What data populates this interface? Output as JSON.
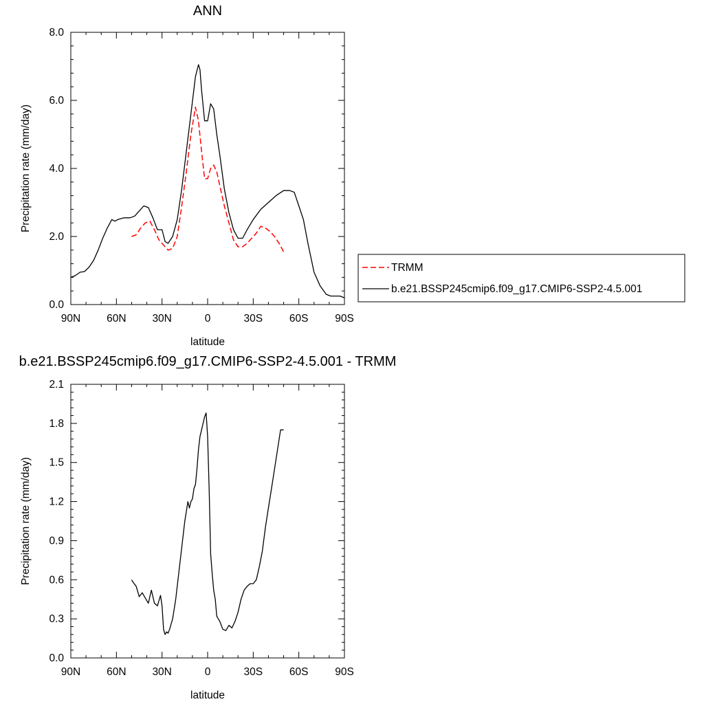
{
  "chart_data": [
    {
      "type": "line",
      "title": "ANN",
      "xlabel": "latitude",
      "ylabel": "Precipitation rate (mm/day)",
      "xlim": [
        90,
        -90
      ],
      "ylim": [
        0.0,
        8.0
      ],
      "x_ticks": [
        90,
        60,
        30,
        0,
        -30,
        -60,
        -90
      ],
      "x_tick_labels": [
        "90N",
        "60N",
        "30N",
        "0",
        "30S",
        "60S",
        "90S"
      ],
      "y_ticks": [
        0,
        2,
        4,
        6,
        8
      ],
      "y_tick_labels": [
        "0.0",
        "2.0",
        "4.0",
        "6.0",
        "8.0"
      ],
      "legend": {
        "placement": "right",
        "entries": [
          {
            "label": "TRMM",
            "color": "#ff0000",
            "dash": true
          },
          {
            "label": "b.e21.BSSP245cmip6.f09_g17.CMIP6-SSP2-4.5.001",
            "color": "#000000",
            "dash": false
          }
        ]
      },
      "series": [
        {
          "name": "TRMM",
          "color": "#ff0000",
          "dash": true,
          "x": [
            50,
            47,
            44,
            41,
            38,
            35,
            32,
            29,
            26,
            23,
            20,
            17,
            14,
            11,
            8,
            6,
            4,
            2,
            0,
            -2,
            -4,
            -6,
            -8,
            -11,
            -14,
            -17,
            -20,
            -23,
            -26,
            -29,
            -32,
            -35,
            -38,
            -41,
            -44,
            -47,
            -50
          ],
          "y": [
            2.0,
            2.05,
            2.25,
            2.4,
            2.45,
            2.2,
            1.9,
            1.75,
            1.6,
            1.65,
            2.0,
            2.9,
            3.9,
            5.0,
            5.8,
            5.4,
            4.5,
            3.7,
            3.7,
            4.0,
            4.1,
            3.9,
            3.5,
            2.9,
            2.4,
            1.9,
            1.7,
            1.7,
            1.8,
            1.95,
            2.1,
            2.3,
            2.25,
            2.15,
            2.0,
            1.8,
            1.55
          ]
        },
        {
          "name": "b.e21.BSSP245cmip6.f09_g17.CMIP6-SSP2-4.5.001",
          "color": "#000000",
          "dash": false,
          "x": [
            90,
            87,
            84,
            81,
            78,
            75,
            72,
            69,
            66,
            63,
            61,
            59,
            55,
            51,
            48,
            45,
            42,
            39,
            36,
            33,
            30,
            28,
            26,
            23,
            20,
            17,
            14,
            11,
            8,
            6,
            5,
            4,
            2,
            0,
            -2,
            -4,
            -6,
            -8,
            -11,
            -14,
            -17,
            -20,
            -23,
            -26,
            -30,
            -35,
            -40,
            -45,
            -50,
            -54,
            -57,
            -60,
            -63,
            -66,
            -70,
            -74,
            -78,
            -81,
            -84,
            -87,
            -90
          ],
          "y": [
            0.8,
            0.85,
            0.95,
            0.97,
            1.1,
            1.3,
            1.6,
            1.95,
            2.25,
            2.5,
            2.45,
            2.5,
            2.55,
            2.55,
            2.6,
            2.75,
            2.9,
            2.85,
            2.55,
            2.2,
            2.2,
            1.85,
            1.8,
            2.0,
            2.5,
            3.4,
            4.5,
            5.6,
            6.7,
            7.05,
            6.9,
            6.3,
            5.4,
            5.4,
            5.9,
            5.75,
            5.0,
            4.4,
            3.4,
            2.7,
            2.2,
            1.95,
            1.95,
            2.2,
            2.5,
            2.8,
            3.0,
            3.2,
            3.35,
            3.35,
            3.3,
            2.9,
            2.5,
            1.8,
            0.95,
            0.55,
            0.3,
            0.25,
            0.25,
            0.25,
            0.2
          ]
        }
      ]
    },
    {
      "type": "line",
      "title": "b.e21.BSSP245cmip6.f09_g17.CMIP6-SSP2-4.5.001 - TRMM",
      "xlabel": "latitude",
      "ylabel": "Precipitation rate (mm/day)",
      "xlim": [
        90,
        -90
      ],
      "ylim": [
        0.0,
        2.1
      ],
      "x_ticks": [
        90,
        60,
        30,
        0,
        -30,
        -60,
        -90
      ],
      "x_tick_labels": [
        "90N",
        "60N",
        "30N",
        "0",
        "30S",
        "60S",
        "90S"
      ],
      "y_ticks": [
        0,
        0.3,
        0.6,
        0.9,
        1.2,
        1.5,
        1.8,
        2.1
      ],
      "y_tick_labels": [
        "0.0",
        "0.3",
        "0.6",
        "0.9",
        "1.2",
        "1.5",
        "1.8",
        "2.1"
      ],
      "series": [
        {
          "color": "#000000",
          "dash": false,
          "x": [
            50,
            49,
            47,
            45,
            43,
            41,
            39,
            37,
            35,
            33,
            31,
            30,
            29,
            28,
            27,
            26,
            25,
            23,
            21,
            19,
            17,
            15,
            13,
            12,
            11,
            10,
            9,
            8,
            7,
            6,
            5,
            4,
            3,
            2,
            1,
            0,
            -1,
            -2,
            -3,
            -4,
            -5,
            -6,
            -7,
            -8,
            -10,
            -12,
            -14,
            -16,
            -18,
            -20,
            -22,
            -24,
            -26,
            -28,
            -30,
            -32,
            -34,
            -36,
            -38,
            -40,
            -42,
            -44,
            -46,
            -48,
            -50
          ],
          "y": [
            0.6,
            0.58,
            0.55,
            0.47,
            0.5,
            0.46,
            0.42,
            0.52,
            0.42,
            0.4,
            0.48,
            0.4,
            0.22,
            0.18,
            0.2,
            0.19,
            0.22,
            0.3,
            0.45,
            0.65,
            0.85,
            1.05,
            1.2,
            1.15,
            1.2,
            1.22,
            1.3,
            1.33,
            1.45,
            1.6,
            1.7,
            1.75,
            1.8,
            1.85,
            1.88,
            1.7,
            1.3,
            0.8,
            0.65,
            0.52,
            0.45,
            0.32,
            0.3,
            0.28,
            0.22,
            0.21,
            0.25,
            0.23,
            0.28,
            0.35,
            0.45,
            0.52,
            0.55,
            0.57,
            0.57,
            0.6,
            0.7,
            0.82,
            1.0,
            1.15,
            1.3,
            1.45,
            1.6,
            1.75,
            1.75
          ]
        }
      ]
    }
  ]
}
